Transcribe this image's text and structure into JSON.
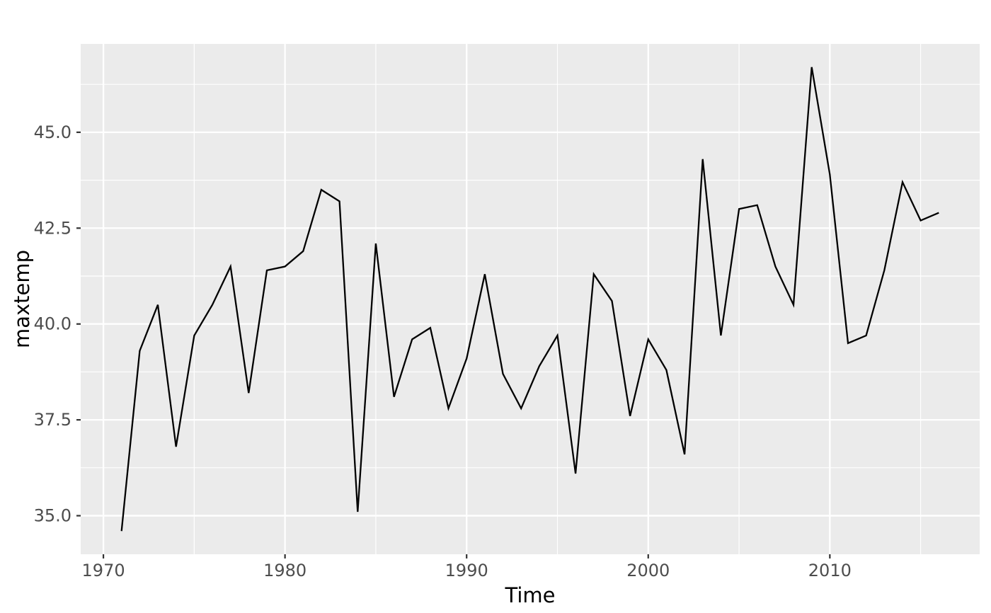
{
  "figure": {
    "background": "#FFFFFF"
  },
  "chart_data": {
    "type": "line",
    "title": "",
    "xlabel": "Time",
    "ylabel": "maxtemp",
    "x": [
      1971,
      1972,
      1973,
      1974,
      1975,
      1976,
      1977,
      1978,
      1979,
      1980,
      1981,
      1982,
      1983,
      1984,
      1985,
      1986,
      1987,
      1988,
      1989,
      1990,
      1991,
      1992,
      1993,
      1994,
      1995,
      1996,
      1997,
      1998,
      1999,
      2000,
      2001,
      2002,
      2003,
      2004,
      2005,
      2006,
      2007,
      2008,
      2009,
      2010,
      2011,
      2012,
      2013,
      2014,
      2015,
      2016
    ],
    "series": [
      {
        "name": "maxtemp",
        "color": "#000000",
        "values": [
          34.6,
          39.3,
          40.5,
          36.8,
          39.7,
          40.5,
          41.5,
          38.2,
          41.4,
          41.5,
          41.9,
          43.5,
          43.2,
          35.1,
          42.1,
          38.1,
          39.6,
          39.9,
          37.8,
          39.1,
          41.3,
          38.7,
          37.8,
          38.9,
          39.7,
          36.1,
          41.3,
          40.6,
          37.6,
          39.6,
          38.8,
          36.6,
          44.3,
          39.7,
          43.0,
          43.1,
          41.5,
          40.5,
          46.7,
          43.9,
          39.5,
          39.7,
          41.4,
          43.7,
          42.7,
          42.9
        ]
      }
    ],
    "xlim": [
      1968.75,
      2018.25
    ],
    "ylim": [
      33.995,
      47.305
    ],
    "x_ticks": {
      "values": [
        1970,
        1980,
        1990,
        2000,
        2010
      ],
      "labels": [
        "1970",
        "1980",
        "1990",
        "2000",
        "2010"
      ]
    },
    "y_ticks": {
      "values": [
        35.0,
        37.5,
        40.0,
        42.5,
        45.0
      ],
      "labels": [
        "35.0",
        "37.5",
        "40.0",
        "42.5",
        "45.0"
      ]
    },
    "x_minor_ticks": [
      1975,
      1985,
      1995,
      2005,
      2015
    ],
    "y_minor_ticks": [
      36.25,
      38.75,
      41.25,
      43.75,
      46.25
    ],
    "grid": true,
    "legend": "none",
    "style": {
      "panel_background": "#EBEBEB",
      "gridline_color": "#FFFFFF",
      "tick_mark_color": "#333333",
      "tick_label_color": "#4D4D4D",
      "axis_title_color": "#000000",
      "line_color": "#000000"
    }
  }
}
